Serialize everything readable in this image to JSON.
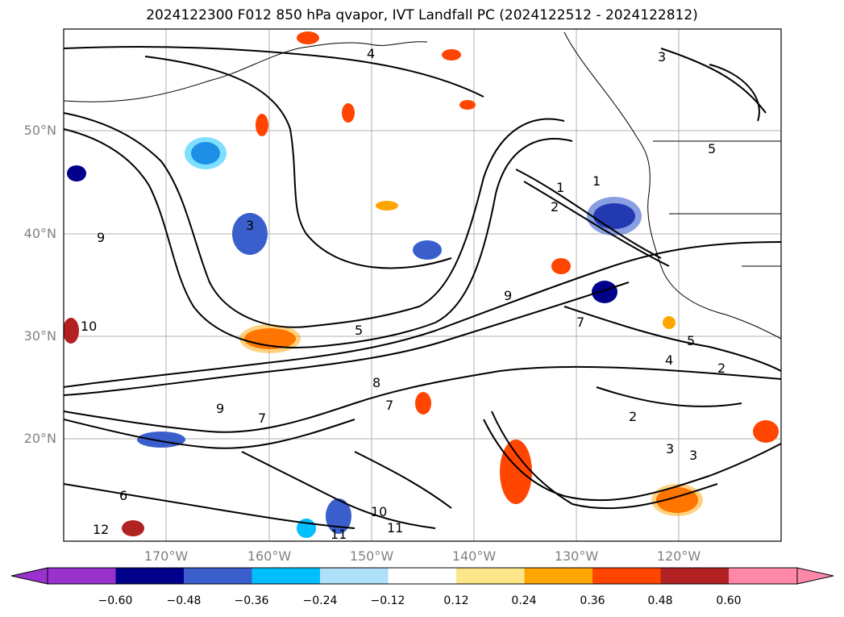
{
  "title": "2024122300 F012 850 hPa qvapor, IVT Landfall PC (2024122512 - 2024122812)",
  "axes": {
    "lat_labels": [
      "50°N",
      "40°N",
      "30°N",
      "20°N"
    ],
    "lon_labels": [
      "170°W",
      "160°W",
      "150°W",
      "140°W",
      "130°W",
      "120°W"
    ]
  },
  "colorbar": {
    "ticks": [
      "−0.60",
      "−0.48",
      "−0.36",
      "−0.24",
      "−0.12",
      "0.12",
      "0.24",
      "0.36",
      "0.48",
      "0.60"
    ],
    "colors": [
      "#9932cc",
      "#00008b",
      "#3a5fcd",
      "#00bfff",
      "#afe0fa",
      "#ffffff",
      "#fde68a",
      "#ffa500",
      "#ff4500",
      "#b22222",
      "#ff88a8"
    ],
    "extend": "both"
  },
  "contour_labels": [
    "1",
    "1",
    "2",
    "2",
    "2",
    "3",
    "3",
    "3",
    "3",
    "4",
    "4",
    "5",
    "5",
    "5",
    "6",
    "7",
    "7",
    "7",
    "8",
    "9",
    "9",
    "9",
    "10",
    "10",
    "11",
    "11",
    "12"
  ]
}
